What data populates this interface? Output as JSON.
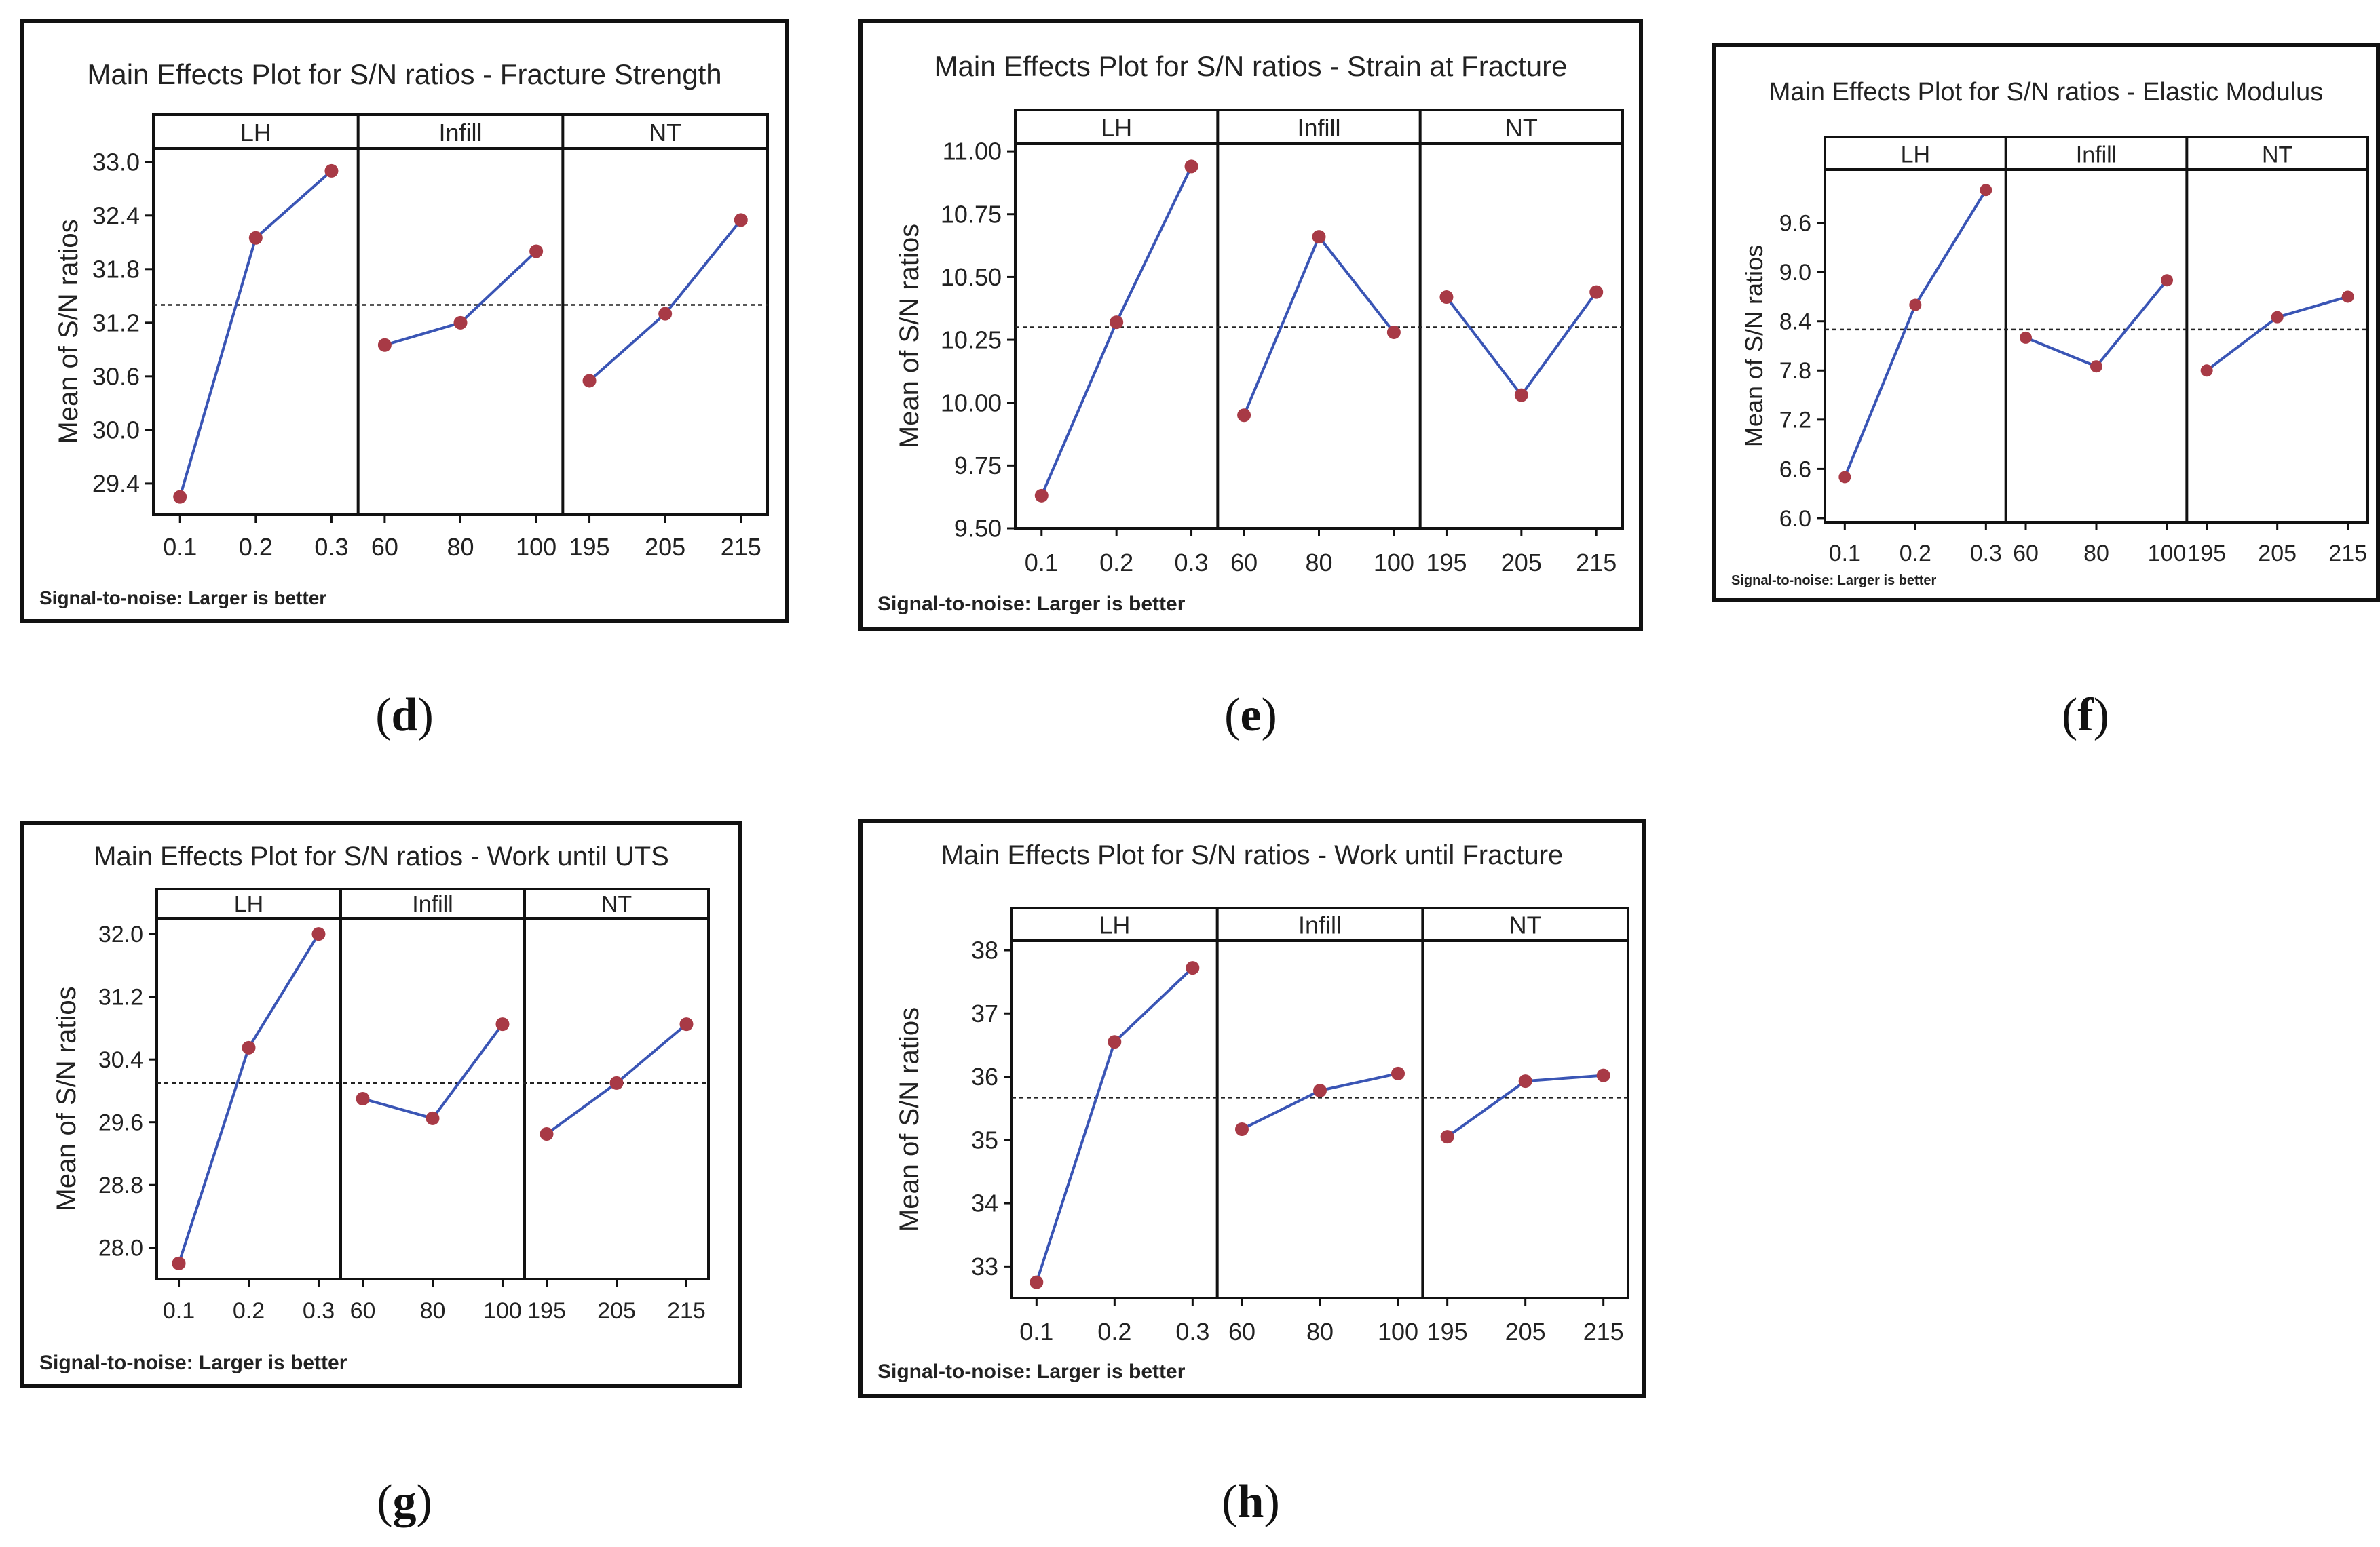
{
  "figure": {
    "footnote": "Signal-to-noise: Larger is better",
    "y_label": "Mean of S/N ratios",
    "series_color": "#3a55b5",
    "marker_color": "#a83a46",
    "mean_line_style": "dotted"
  },
  "chart_data": [
    {
      "id": "d",
      "caption": "d",
      "type": "line",
      "title": "Main Effects Plot for S/N ratios - Fracture Strength",
      "ylabel": "Mean of S/N ratios",
      "footnote": "Signal-to-noise: Larger is better",
      "ylim": [
        29.05,
        33.15
      ],
      "yticks": [
        29.4,
        30.0,
        30.6,
        31.2,
        31.8,
        32.4,
        33.0
      ],
      "ytick_labels": [
        "29.4",
        "30.0",
        "30.6",
        "31.2",
        "31.8",
        "32.4",
        "33.0"
      ],
      "mean": 31.4,
      "panels": [
        {
          "label": "LH",
          "x": [
            "0.1",
            "0.2",
            "0.3"
          ],
          "values": [
            29.25,
            32.15,
            32.9
          ]
        },
        {
          "label": "Infill",
          "x": [
            "60",
            "80",
            "100"
          ],
          "values": [
            30.95,
            31.2,
            32.0
          ]
        },
        {
          "label": "NT",
          "x": [
            "195",
            "205",
            "215"
          ],
          "values": [
            30.55,
            31.3,
            32.35
          ]
        }
      ]
    },
    {
      "id": "e",
      "caption": "e",
      "type": "line",
      "title": "Main Effects Plot for S/N ratios - Strain at Fracture",
      "ylabel": "Mean of S/N ratios",
      "footnote": "Signal-to-noise: Larger is better",
      "ylim": [
        9.5,
        11.03
      ],
      "yticks": [
        9.5,
        9.75,
        10.0,
        10.25,
        10.5,
        10.75,
        11.0
      ],
      "ytick_labels": [
        "9.50",
        "9.75",
        "10.00",
        "10.25",
        "10.50",
        "10.75",
        "11.00"
      ],
      "mean": 10.3,
      "panels": [
        {
          "label": "LH",
          "x": [
            "0.1",
            "0.2",
            "0.3"
          ],
          "values": [
            9.63,
            10.32,
            10.94
          ]
        },
        {
          "label": "Infill",
          "x": [
            "60",
            "80",
            "100"
          ],
          "values": [
            9.95,
            10.66,
            10.28
          ]
        },
        {
          "label": "NT",
          "x": [
            "195",
            "205",
            "215"
          ],
          "values": [
            10.42,
            10.03,
            10.44
          ]
        }
      ]
    },
    {
      "id": "f",
      "caption": "f",
      "type": "line",
      "title": "Main Effects Plot for S/N ratios - Elastic Modulus",
      "ylabel": "Mean of S/N ratios",
      "footnote": "Signal-to-noise: Larger is better",
      "ylim": [
        5.95,
        10.25
      ],
      "yticks": [
        6.0,
        6.6,
        7.2,
        7.8,
        8.4,
        9.0,
        9.6
      ],
      "ytick_labels": [
        "6.0",
        "6.6",
        "7.2",
        "7.8",
        "8.4",
        "9.0",
        "9.6"
      ],
      "mean": 8.3,
      "panels": [
        {
          "label": "LH",
          "x": [
            "0.1",
            "0.2",
            "0.3"
          ],
          "values": [
            6.5,
            8.6,
            10.0
          ]
        },
        {
          "label": "Infill",
          "x": [
            "60",
            "80",
            "100"
          ],
          "values": [
            8.2,
            7.85,
            8.9
          ]
        },
        {
          "label": "NT",
          "x": [
            "195",
            "205",
            "215"
          ],
          "values": [
            7.8,
            8.45,
            8.7
          ]
        }
      ]
    },
    {
      "id": "g",
      "caption": "g",
      "type": "line",
      "title": "Main Effects Plot for S/N ratios - Work until UTS",
      "ylabel": "Mean of S/N ratios",
      "footnote": "Signal-to-noise: Larger is better",
      "ylim": [
        27.6,
        32.2
      ],
      "yticks": [
        28.0,
        28.8,
        29.6,
        30.4,
        31.2,
        32.0
      ],
      "ytick_labels": [
        "28.0",
        "28.8",
        "29.6",
        "30.4",
        "31.2",
        "32.0"
      ],
      "mean": 30.1,
      "panels": [
        {
          "label": "LH",
          "x": [
            "0.1",
            "0.2",
            "0.3"
          ],
          "values": [
            27.8,
            30.55,
            32.0
          ]
        },
        {
          "label": "Infill",
          "x": [
            "60",
            "80",
            "100"
          ],
          "values": [
            29.9,
            29.65,
            30.85
          ]
        },
        {
          "label": "NT",
          "x": [
            "195",
            "205",
            "215"
          ],
          "values": [
            29.45,
            30.1,
            30.85
          ]
        }
      ]
    },
    {
      "id": "h",
      "caption": "h",
      "type": "line",
      "title": "Main Effects Plot for S/N ratios - Work until Fracture",
      "ylabel": "Mean of S/N ratios",
      "footnote": "Signal-to-noise: Larger is better",
      "ylim": [
        32.5,
        38.15
      ],
      "yticks": [
        33,
        34,
        35,
        36,
        37,
        38
      ],
      "ytick_labels": [
        "33",
        "34",
        "35",
        "36",
        "37",
        "38"
      ],
      "mean": 35.67,
      "panels": [
        {
          "label": "LH",
          "x": [
            "0.1",
            "0.2",
            "0.3"
          ],
          "values": [
            32.75,
            36.55,
            37.72
          ]
        },
        {
          "label": "Infill",
          "x": [
            "60",
            "80",
            "100"
          ],
          "values": [
            35.17,
            35.78,
            36.05
          ]
        },
        {
          "label": "NT",
          "x": [
            "195",
            "205",
            "215"
          ],
          "values": [
            35.05,
            35.93,
            36.02
          ]
        }
      ]
    }
  ]
}
